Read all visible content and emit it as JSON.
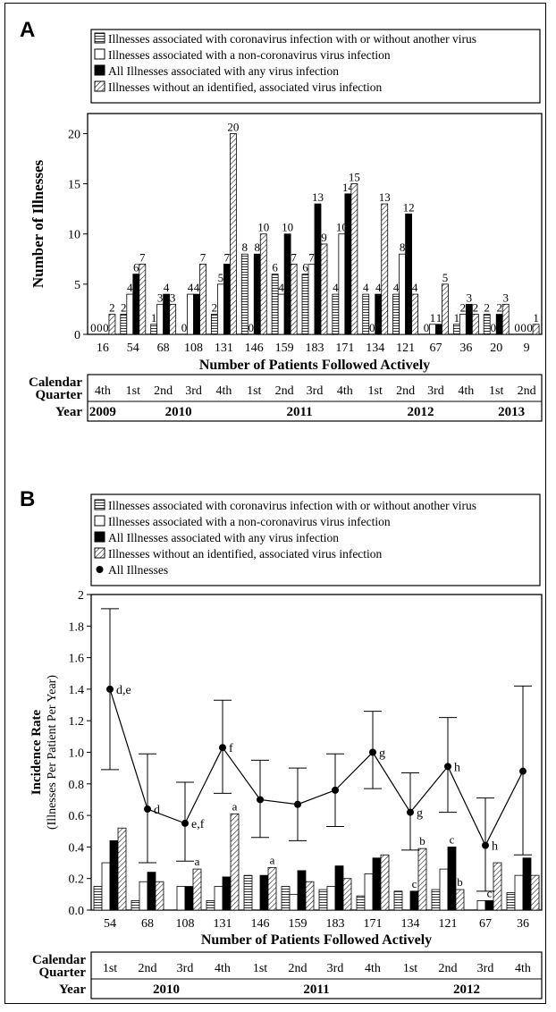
{
  "patterns": {
    "coronavirus": "horizontal-lines",
    "non_coronavirus": "white",
    "any_virus": "black",
    "no_virus": "diagonal-hatch"
  },
  "chart_data": [
    {
      "panel": "A",
      "type": "bar",
      "ylabel": "Number of Illnesses",
      "xlabel": "Number of Patients Followed Actively",
      "ylim": [
        0,
        22
      ],
      "yticks": [
        0,
        5,
        10,
        15,
        20
      ],
      "grid": false,
      "legend_position": "top",
      "legend": [
        "Illnesses associated with coronavirus infection with or without another virus",
        "Illnesses associated with a non-coronavirus virus infection",
        "All Illnesses associated with any virus infection",
        "Illnesses without an identified, associated virus infection"
      ],
      "categories": [
        "16",
        "54",
        "68",
        "108",
        "131",
        "146",
        "159",
        "183",
        "171",
        "134",
        "121",
        "67",
        "36",
        "20",
        "9"
      ],
      "series": [
        {
          "name": "Illnesses associated with coronavirus infection with or without another virus",
          "values": [
            0,
            2,
            1,
            0,
            2,
            8,
            6,
            6,
            4,
            4,
            4,
            0,
            1,
            2,
            0
          ]
        },
        {
          "name": "Illnesses associated with a non-coronavirus virus infection",
          "values": [
            0,
            4,
            3,
            4,
            5,
            0,
            4,
            7,
            10,
            0,
            8,
            1,
            2,
            0,
            0
          ]
        },
        {
          "name": "All Illnesses associated with any virus infection",
          "values": [
            0,
            6,
            4,
            4,
            7,
            8,
            10,
            13,
            14,
            4,
            12,
            1,
            3,
            2,
            0
          ]
        },
        {
          "name": "Illnesses without an identified, associated virus infection",
          "values": [
            2,
            7,
            3,
            7,
            20,
            10,
            7,
            9,
            15,
            13,
            4,
            5,
            2,
            3,
            1
          ]
        }
      ],
      "quarter_row_label": "Calendar Quarter",
      "quarters": [
        "4th",
        "1st",
        "2nd",
        "3rd",
        "4th",
        "1st",
        "2nd",
        "3rd",
        "4th",
        "1st",
        "2nd",
        "3rd",
        "4th",
        "1st",
        "2nd"
      ],
      "year_row_label": "Year",
      "years": [
        {
          "label": "2009",
          "span": 1
        },
        {
          "label": "2010",
          "span": 4
        },
        {
          "label": "2011",
          "span": 4
        },
        {
          "label": "2012",
          "span": 4
        },
        {
          "label": "2013",
          "span": 2
        }
      ]
    },
    {
      "panel": "B",
      "type": "bar",
      "ylabel": "Incidence Rate",
      "ylabel2": "(Illnesses Per Patient Per Year)",
      "xlabel": "Number of Patients Followed Actively",
      "ylim": [
        0,
        2
      ],
      "yticks": [
        "0.0",
        "0.2",
        "0.4",
        "0.6",
        "0.8",
        "1.0",
        "1.2",
        "1.4",
        "1.6",
        "1.8",
        "2"
      ],
      "grid": false,
      "legend_position": "top",
      "legend": [
        "Illnesses associated with coronavirus infection with or without another virus",
        "Illnesses associated with a non-coronavirus virus infection",
        "All Illnesses associated with any virus infection",
        "Illnesses without an identified, associated virus infection",
        "All Illnesses"
      ],
      "categories": [
        "54",
        "68",
        "108",
        "131",
        "146",
        "159",
        "183",
        "171",
        "134",
        "121",
        "67",
        "36"
      ],
      "series": [
        {
          "name": "Illnesses associated with coronavirus infection with or without another virus",
          "values": [
            0.15,
            0.06,
            0.0,
            0.06,
            0.22,
            0.15,
            0.13,
            0.09,
            0.12,
            0.13,
            0.0,
            0.11
          ]
        },
        {
          "name": "Illnesses associated with a non-coronavirus virus infection",
          "values": [
            0.3,
            0.18,
            0.15,
            0.15,
            0.0,
            0.1,
            0.15,
            0.23,
            0.0,
            0.26,
            0.06,
            0.22
          ]
        },
        {
          "name": "All Illnesses associated with any virus infection",
          "values": [
            0.44,
            0.24,
            0.15,
            0.21,
            0.22,
            0.25,
            0.28,
            0.33,
            0.12,
            0.4,
            0.06,
            0.33
          ]
        },
        {
          "name": "Illnesses without an identified, associated virus infection",
          "values": [
            0.52,
            0.18,
            0.26,
            0.61,
            0.27,
            0.18,
            0.2,
            0.35,
            0.39,
            0.13,
            0.3,
            0.22
          ]
        }
      ],
      "bar_annotations": [
        {
          "category": "108",
          "series": 3,
          "text": "a"
        },
        {
          "category": "131",
          "series": 3,
          "text": "a"
        },
        {
          "category": "146",
          "series": 3,
          "text": "a"
        },
        {
          "category": "134",
          "series": 3,
          "text": "b"
        },
        {
          "category": "121",
          "series": 3,
          "text": "b"
        },
        {
          "category": "134",
          "series": 2,
          "text": "c"
        },
        {
          "category": "121",
          "series": 2,
          "text": "c"
        },
        {
          "category": "67",
          "series": 2,
          "text": "c"
        }
      ],
      "line_series": {
        "name": "All Illnesses",
        "values": [
          1.4,
          0.64,
          0.55,
          1.03,
          0.7,
          0.67,
          0.76,
          1.0,
          0.62,
          0.91,
          0.41,
          0.88
        ],
        "error_low": [
          0.89,
          0.3,
          0.31,
          0.74,
          0.46,
          0.44,
          0.53,
          0.77,
          0.38,
          0.62,
          0.12,
          0.35
        ],
        "error_high": [
          1.91,
          0.99,
          0.81,
          1.33,
          0.95,
          0.9,
          0.99,
          1.26,
          0.87,
          1.22,
          0.71,
          1.42
        ],
        "annotations": [
          "d,e",
          "d",
          "e,f",
          "f",
          "",
          "",
          "",
          "g",
          "g",
          "h",
          "h",
          ""
        ]
      },
      "quarter_row_label": "Calendar Quarter",
      "quarters": [
        "1st",
        "2nd",
        "3rd",
        "4th",
        "1st",
        "2nd",
        "3rd",
        "4th",
        "1st",
        "2nd",
        "3rd",
        "4th"
      ],
      "year_row_label": "Year",
      "years": [
        {
          "label": "2010",
          "span": 4
        },
        {
          "label": "2011",
          "span": 4
        },
        {
          "label": "2012",
          "span": 4
        }
      ]
    }
  ]
}
